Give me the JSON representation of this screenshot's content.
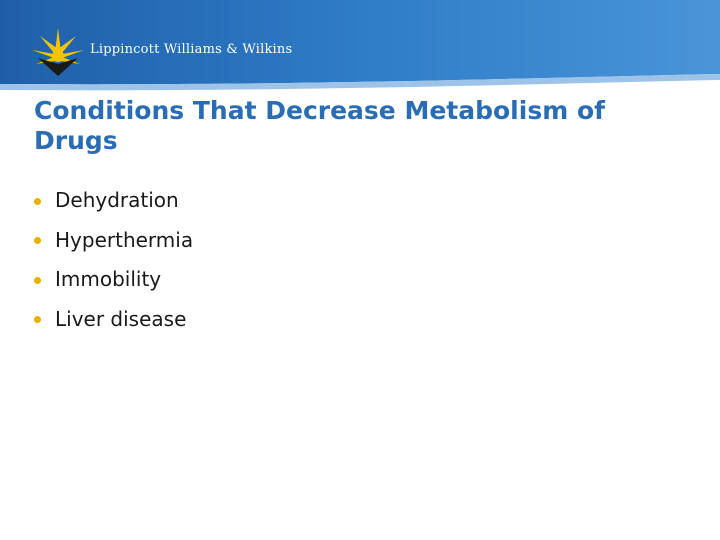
{
  "header": {
    "publisher_name": "Lippincott Williams & Wilkins",
    "colors": {
      "band_dark": "#1f5fa8",
      "band_light": "#4a95d8",
      "logo_gold": "#f5c400"
    }
  },
  "slide": {
    "title": "Conditions That Decrease Metabolism of Drugs",
    "bullets": [
      "Dehydration",
      "Hyperthermia",
      "Immobility",
      "Liver disease"
    ],
    "colors": {
      "title": "#2a6db5",
      "bullet": "#e8b000"
    }
  }
}
